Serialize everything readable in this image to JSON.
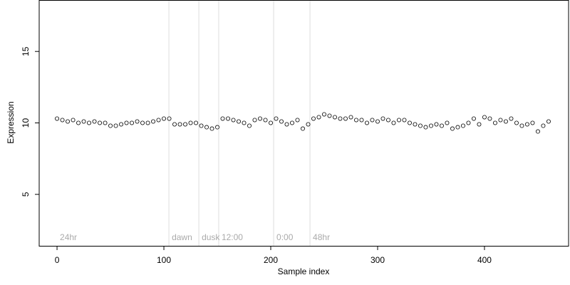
{
  "chart_data": {
    "type": "scatter",
    "xlabel": "Sample index",
    "ylabel": "Expression",
    "xlim": [
      -16.7,
      478.7
    ],
    "ylim": [
      1.4,
      18.6
    ],
    "xticks": [
      0,
      100,
      200,
      300,
      400
    ],
    "yticks": [
      5,
      10,
      15
    ],
    "marker_fill": "#ffffff",
    "marker_edge": "#000000",
    "vlines": [
      104.7,
      132.7,
      151.3,
      202.7,
      236.7
    ],
    "vline_color": "#dddddd",
    "annotations": [
      {
        "x": 0,
        "label": "24hr"
      },
      {
        "x": 104.7,
        "label": "dawn"
      },
      {
        "x": 132.7,
        "label": "dusk"
      },
      {
        "x": 151.3,
        "label": "12:00"
      },
      {
        "x": 202.7,
        "label": "0:00"
      },
      {
        "x": 236.7,
        "label": "48hr"
      }
    ],
    "x": [
      0,
      5,
      10,
      15,
      20,
      25,
      30,
      35,
      40,
      45,
      50,
      55,
      60,
      65,
      70,
      75,
      80,
      85,
      90,
      95,
      100,
      105,
      110,
      115,
      120,
      125,
      130,
      135,
      140,
      145,
      150,
      155,
      160,
      165,
      170,
      175,
      180,
      185,
      190,
      195,
      200,
      205,
      210,
      215,
      220,
      225,
      230,
      235,
      240,
      245,
      250,
      255,
      260,
      265,
      270,
      275,
      280,
      285,
      290,
      295,
      300,
      305,
      310,
      315,
      320,
      325,
      330,
      335,
      340,
      345,
      350,
      355,
      360,
      365,
      370,
      375,
      380,
      385,
      390,
      395,
      400,
      405,
      410,
      415,
      420,
      425,
      430,
      435,
      440,
      445,
      450,
      455,
      460
    ],
    "values": [
      10.3,
      10.2,
      10.1,
      10.2,
      10.0,
      10.1,
      10.0,
      10.1,
      10.0,
      10.0,
      9.8,
      9.8,
      9.9,
      10.0,
      10.0,
      10.1,
      10.0,
      10.0,
      10.1,
      10.2,
      10.3,
      10.3,
      9.9,
      9.9,
      9.9,
      10.0,
      10.0,
      9.8,
      9.7,
      9.6,
      9.7,
      10.3,
      10.3,
      10.2,
      10.1,
      10.0,
      9.8,
      10.2,
      10.3,
      10.2,
      10.0,
      10.3,
      10.1,
      9.9,
      10.0,
      10.2,
      9.6,
      9.9,
      10.3,
      10.4,
      10.6,
      10.5,
      10.4,
      10.3,
      10.3,
      10.4,
      10.2,
      10.2,
      10.0,
      10.2,
      10.1,
      10.3,
      10.2,
      10.0,
      10.2,
      10.2,
      10.0,
      9.9,
      9.8,
      9.7,
      9.8,
      9.9,
      9.8,
      10.0,
      9.6,
      9.7,
      9.8,
      10.0,
      10.3,
      9.9,
      10.4,
      10.3,
      10.0,
      10.2,
      10.1,
      10.3,
      10.0,
      9.8,
      9.9,
      10.0,
      9.4,
      9.8,
      10.1
    ]
  }
}
